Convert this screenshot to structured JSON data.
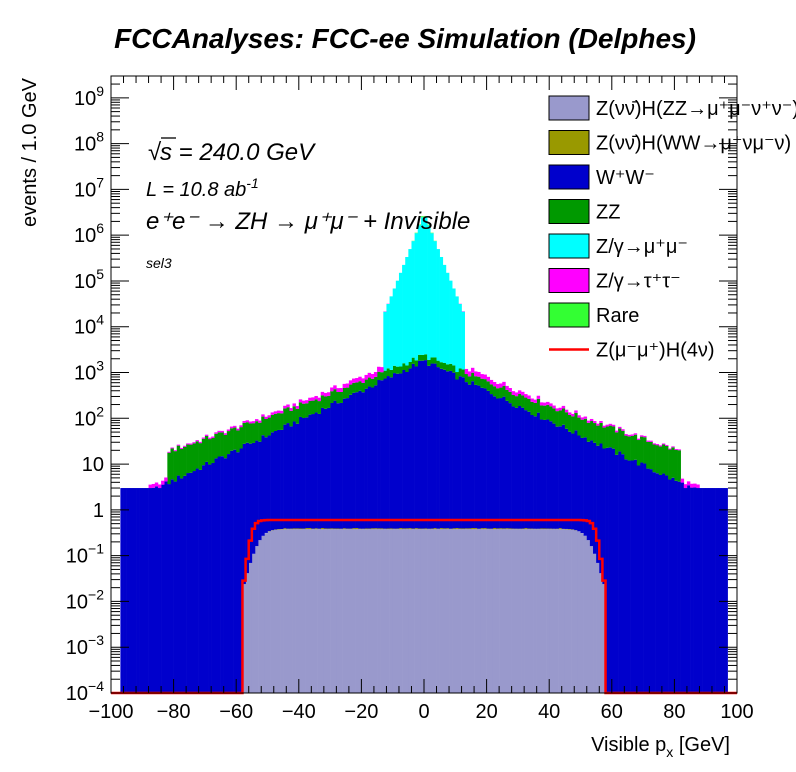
{
  "chart_data": {
    "type": "histogram",
    "title": "FCCAnalyses: FCC-ee Simulation (Delphes)",
    "xlabel": "Visible p",
    "xlabel_sub": "x",
    "xlabel_unit": " [GeV]",
    "ylabel": "events / 1.0 GeV",
    "xlim": [
      -100,
      100
    ],
    "ylim": [
      0.0001,
      3000000000
    ],
    "y_scale": "log",
    "bin_width": 1.0,
    "stacked": true,
    "x_ticks": [
      "−100",
      "−80",
      "−60",
      "−40",
      "−20",
      "0",
      "20",
      "40",
      "60",
      "80",
      "100"
    ],
    "y_ticks": [
      {
        "base": "10",
        "exp": "−4"
      },
      {
        "base": "10",
        "exp": "−3"
      },
      {
        "base": "10",
        "exp": "−2"
      },
      {
        "base": "10",
        "exp": "−1"
      },
      {
        "base": "1",
        "exp": ""
      },
      {
        "base": "10",
        "exp": ""
      },
      {
        "base": "10",
        "exp": "2"
      },
      {
        "base": "10",
        "exp": "3"
      },
      {
        "base": "10",
        "exp": "4"
      },
      {
        "base": "10",
        "exp": "5"
      },
      {
        "base": "10",
        "exp": "6"
      },
      {
        "base": "10",
        "exp": "7"
      },
      {
        "base": "10",
        "exp": "8"
      },
      {
        "base": "10",
        "exp": "9"
      }
    ],
    "annotations": {
      "sqrt_symbol": "√",
      "energy": "s = 240.0 GeV",
      "lumi_prefix": "L = 10.8 ab",
      "lumi_exp": "-1",
      "process": "e⁺e⁻ → ZH → μ⁺μ⁻ + Invisible",
      "selection": "sel3"
    },
    "grid": false,
    "legend_position": "top-right",
    "series": [
      {
        "name": "Z(νν̄)H(ZZ→μ⁺μ⁻ν⁺ν⁻)",
        "color": "#9999cc",
        "shape": {
          "kind": "plateau",
          "peak": 0.38,
          "half_width": 53,
          "edge": 5,
          "floor": 1e-05
        }
      },
      {
        "name": "Z(νν̄)H(WW→μ⁺νμ⁻ν)",
        "color": "#999900",
        "shape": {
          "kind": "plateau",
          "peak": 0.012,
          "half_width": 48,
          "edge": 4,
          "floor": 0.0001,
          "noise": 0.6
        }
      },
      {
        "name": "W⁺W⁻",
        "color": "#0000cc",
        "shape": {
          "kind": "exp",
          "peak": 1800,
          "slope": 0.075,
          "floor": 3,
          "endpoint": 97
        }
      },
      {
        "name": "ZZ",
        "color": "#009900",
        "shape": {
          "kind": "exp",
          "peak": 600,
          "slope": 0.045,
          "floor": 0.5,
          "endpoint": 82
        }
      },
      {
        "name": "Z/γ→μ⁺μ⁻",
        "color": "#00ffff",
        "shape": {
          "kind": "spike",
          "peak": 3000000,
          "width": 2.5,
          "floor": 0.0001,
          "range": 13
        }
      },
      {
        "name": "Z/γ→τ⁺τ⁻",
        "color": "#ff00ff",
        "shape": {
          "kind": "exp",
          "peak": 900,
          "slope": 0.085,
          "floor": 0.0001,
          "endpoint": 88
        }
      },
      {
        "name": "Rare",
        "color": "#33ff33",
        "shape": {
          "kind": "spike",
          "peak": 200000,
          "width": 1.2,
          "floor": 0.0001,
          "range": 4
        }
      }
    ],
    "overlay": {
      "name": "Z(μ⁻μ⁺)H(4ν)",
      "color": "#ff0000",
      "shape": {
        "kind": "plateau",
        "peak": 0.6,
        "half_width": 55,
        "edge": 2.5,
        "floor": 0.0001
      }
    }
  }
}
